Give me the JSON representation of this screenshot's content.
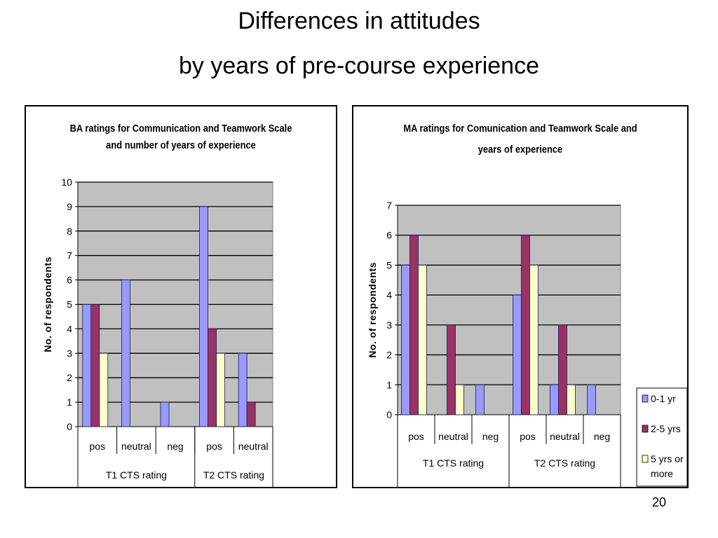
{
  "slide": {
    "title_line1": "Differences in attitudes",
    "title_line2": "by years of pre-course experience",
    "page_number": "20"
  },
  "series_colors": {
    "0-1 yr": "#9999ff",
    "2-5 yrs": "#993366",
    "5 yrs or more": "#ffffcc"
  },
  "chart_data": [
    {
      "id": "ba",
      "type": "bar",
      "title_line1": "BA ratings for Communication and Teamwork Scale",
      "title_line2": "and number of years of experience",
      "xlabel": "",
      "ylabel": "No. of respondents",
      "ylim": [
        0,
        10
      ],
      "yticks": [
        0,
        1,
        2,
        3,
        4,
        5,
        6,
        7,
        8,
        9,
        10
      ],
      "grid": true,
      "legend": "none",
      "categories": [
        "pos",
        "neutral",
        "neg",
        "pos",
        "neutral"
      ],
      "groups": [
        {
          "label": "T1 CTS rating",
          "span": 3
        },
        {
          "label": "T2 CTS rating",
          "span": 2
        }
      ],
      "series": [
        {
          "name": "0-1 yr",
          "values": [
            5,
            6,
            1,
            9,
            3
          ]
        },
        {
          "name": "2-5 yrs",
          "values": [
            5,
            0,
            0,
            4,
            1
          ]
        },
        {
          "name": "5 yrs or more",
          "values": [
            3,
            0,
            0,
            3,
            0
          ]
        }
      ]
    },
    {
      "id": "ma",
      "type": "bar",
      "title_line1": "MA ratings for Comunication and Teamwork Scale and",
      "title_line2": "years of experience",
      "xlabel": "",
      "ylabel": "No. of respondents",
      "ylim": [
        0,
        7
      ],
      "yticks": [
        0,
        1,
        2,
        3,
        4,
        5,
        6,
        7
      ],
      "grid": true,
      "legend": "bottom-right",
      "legend_entries": [
        "0-1 yr",
        "2-5 yrs",
        "5 yrs or more"
      ],
      "legend_labels": [
        [
          "0-1 yr"
        ],
        [
          "2-5 yrs"
        ],
        [
          "5 yrs or",
          "more"
        ]
      ],
      "categories": [
        "pos",
        "neutral",
        "neg",
        "pos",
        "neutral",
        "neg"
      ],
      "groups": [
        {
          "label": "T1 CTS rating",
          "span": 3
        },
        {
          "label": "T2 CTS rating",
          "span": 3
        }
      ],
      "series": [
        {
          "name": "0-1 yr",
          "values": [
            5,
            0,
            1,
            4,
            1,
            1
          ]
        },
        {
          "name": "2-5 yrs",
          "values": [
            6,
            3,
            0,
            6,
            3,
            0
          ]
        },
        {
          "name": "5 yrs or more",
          "values": [
            5,
            1,
            0,
            5,
            1,
            0
          ]
        }
      ]
    }
  ]
}
